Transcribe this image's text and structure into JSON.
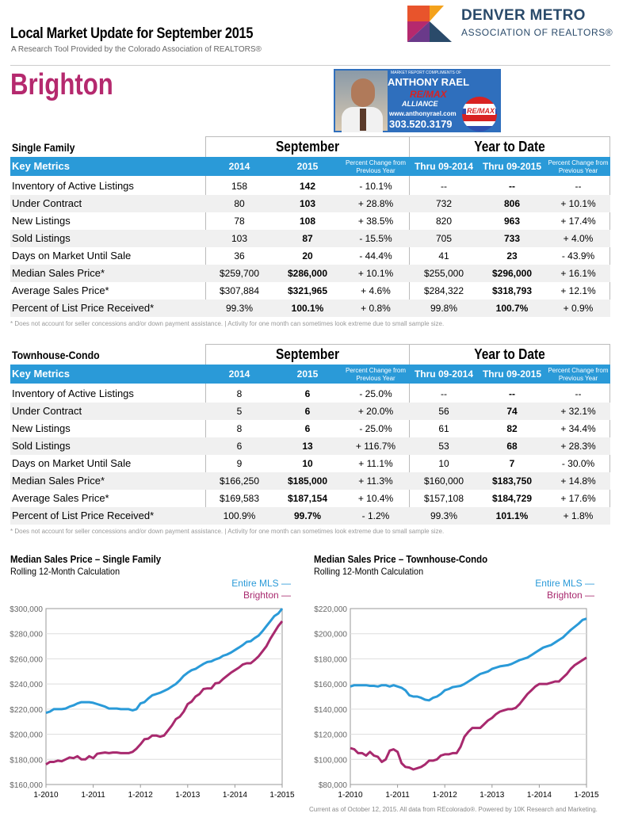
{
  "header": {
    "title": "Local Market Update for September 2015",
    "subtitle": "A Research Tool Provided by the Colorado Association of REALTORS®",
    "city": "Brighton",
    "logo_line1": "DENVER METRO",
    "logo_line2": "ASSOCIATION OF REALTORS®"
  },
  "ad": {
    "top": "MARKET REPORT COMPLIMENTS OF",
    "name": "ANTHONY RAEL",
    "brand": "RE/MAX",
    "brand2": "ALLIANCE",
    "website": "www.anthonyrael.com",
    "phone": "303.520.3179",
    "balloon": "RE/MAX"
  },
  "columns": {
    "key_metrics": "Key Metrics",
    "y2014": "2014",
    "y2015": "2015",
    "pct": "Percent Change from Previous Year",
    "ytd2014": "Thru 09-2014",
    "ytd2015": "Thru 09-2015",
    "period": "September",
    "ytd": "Year to Date"
  },
  "footnote": "* Does not account for seller concessions and/or down payment assistance.  |  Activity for one month can sometimes look extreme due to small sample size.",
  "single_family": {
    "name": "Single Family",
    "rows": [
      {
        "label": "Inventory of Active Listings",
        "a": "158",
        "b": "142",
        "c": "- 10.1%",
        "d": "--",
        "e": "--",
        "f": "--"
      },
      {
        "label": "Under Contract",
        "a": "80",
        "b": "103",
        "c": "+ 28.8%",
        "d": "732",
        "e": "806",
        "f": "+ 10.1%"
      },
      {
        "label": "New Listings",
        "a": "78",
        "b": "108",
        "c": "+ 38.5%",
        "d": "820",
        "e": "963",
        "f": "+ 17.4%"
      },
      {
        "label": "Sold Listings",
        "a": "103",
        "b": "87",
        "c": "- 15.5%",
        "d": "705",
        "e": "733",
        "f": "+ 4.0%"
      },
      {
        "label": "Days on Market Until Sale",
        "a": "36",
        "b": "20",
        "c": "- 44.4%",
        "d": "41",
        "e": "23",
        "f": "- 43.9%"
      },
      {
        "label": "Median Sales Price*",
        "a": "$259,700",
        "b": "$286,000",
        "c": "+ 10.1%",
        "d": "$255,000",
        "e": "$296,000",
        "f": "+ 16.1%"
      },
      {
        "label": "Average Sales Price*",
        "a": "$307,884",
        "b": "$321,965",
        "c": "+ 4.6%",
        "d": "$284,322",
        "e": "$318,793",
        "f": "+ 12.1%"
      },
      {
        "label": "Percent of List Price Received*",
        "a": "99.3%",
        "b": "100.1%",
        "c": "+ 0.8%",
        "d": "99.8%",
        "e": "100.7%",
        "f": "+ 0.9%"
      }
    ]
  },
  "townhouse": {
    "name": "Townhouse-Condo",
    "rows": [
      {
        "label": "Inventory of Active Listings",
        "a": "8",
        "b": "6",
        "c": "- 25.0%",
        "d": "--",
        "e": "--",
        "f": "--"
      },
      {
        "label": "Under Contract",
        "a": "5",
        "b": "6",
        "c": "+ 20.0%",
        "d": "56",
        "e": "74",
        "f": "+ 32.1%"
      },
      {
        "label": "New Listings",
        "a": "8",
        "b": "6",
        "c": "- 25.0%",
        "d": "61",
        "e": "82",
        "f": "+ 34.4%"
      },
      {
        "label": "Sold Listings",
        "a": "6",
        "b": "13",
        "c": "+ 116.7%",
        "d": "53",
        "e": "68",
        "f": "+ 28.3%"
      },
      {
        "label": "Days on Market Until Sale",
        "a": "9",
        "b": "10",
        "c": "+ 11.1%",
        "d": "10",
        "e": "7",
        "f": "- 30.0%"
      },
      {
        "label": "Median Sales Price*",
        "a": "$166,250",
        "b": "$185,000",
        "c": "+ 11.3%",
        "d": "$160,000",
        "e": "$183,750",
        "f": "+ 14.8%"
      },
      {
        "label": "Average Sales Price*",
        "a": "$169,583",
        "b": "$187,154",
        "c": "+ 10.4%",
        "d": "$157,108",
        "e": "$184,729",
        "f": "+ 17.6%"
      },
      {
        "label": "Percent of List Price Received*",
        "a": "100.9%",
        "b": "99.7%",
        "c": "- 1.2%",
        "d": "99.3%",
        "e": "101.1%",
        "f": "+ 1.8%"
      }
    ]
  },
  "charts": {
    "left_title": "Median Sales Price – Single Family",
    "left_sub": "Rolling 12-Month Calculation",
    "right_title": "Median Sales Price – Townhouse-Condo",
    "right_sub": "Rolling 12-Month Calculation",
    "legend_mls": "Entire MLS  —",
    "legend_city": "Brighton  —"
  },
  "chart_data": [
    {
      "type": "line",
      "title": "Median Sales Price – Single Family",
      "subtitle": "Rolling 12-Month Calculation",
      "x_ticks": [
        "1-2010",
        "1-2011",
        "1-2012",
        "1-2013",
        "1-2014",
        "1-2015"
      ],
      "y_ticks": [
        "$160,000",
        "$180,000",
        "$200,000",
        "$220,000",
        "$240,000",
        "$260,000",
        "$280,000",
        "$300,000"
      ],
      "ylim": [
        160000,
        300000
      ],
      "colors": {
        "Entire MLS": "#2a9ad8",
        "Brighton": "#a8296e"
      },
      "series": [
        {
          "name": "Entire MLS",
          "values": [
            217000,
            218000,
            220000,
            220000,
            220000,
            220500,
            222000,
            223000,
            224500,
            225500,
            225500,
            225500,
            225000,
            224000,
            223000,
            222000,
            220500,
            220500,
            220500,
            220000,
            220000,
            220000,
            219000,
            220000,
            224500,
            225500,
            228500,
            231000,
            232000,
            233000,
            234500,
            236000,
            238000,
            240000,
            243000,
            246500,
            249000,
            251000,
            252000,
            254000,
            256000,
            257500,
            258000,
            259500,
            260500,
            262500,
            263500,
            265000,
            267000,
            269000,
            271000,
            273500,
            274000,
            276500,
            278500,
            282000,
            286000,
            290000,
            294000,
            296000,
            300000
          ]
        },
        {
          "name": "Brighton",
          "values": [
            176000,
            178000,
            178000,
            179000,
            178500,
            180000,
            181500,
            181000,
            182500,
            180000,
            180000,
            182500,
            181000,
            184500,
            185000,
            185500,
            185000,
            185500,
            185500,
            185000,
            185000,
            185000,
            186000,
            188500,
            192000,
            196000,
            196500,
            199000,
            199000,
            198000,
            199000,
            203000,
            207000,
            212000,
            214000,
            218000,
            224000,
            226000,
            230000,
            232000,
            236000,
            236500,
            236500,
            240500,
            241000,
            244000,
            246500,
            249000,
            251000,
            253000,
            255500,
            256500,
            256500,
            259000,
            262000,
            266000,
            270000,
            276000,
            281000,
            286000,
            290000
          ]
        }
      ]
    },
    {
      "type": "line",
      "title": "Median Sales Price – Townhouse-Condo",
      "subtitle": "Rolling 12-Month Calculation",
      "x_ticks": [
        "1-2010",
        "1-2011",
        "1-2012",
        "1-2013",
        "1-2014",
        "1-2015"
      ],
      "y_ticks": [
        "$80,000",
        "$100,000",
        "$120,000",
        "$140,000",
        "$160,000",
        "$180,000",
        "$200,000",
        "$220,000"
      ],
      "ylim": [
        80000,
        220000
      ],
      "colors": {
        "Entire MLS": "#2a9ad8",
        "Brighton": "#a8296e"
      },
      "series": [
        {
          "name": "Entire MLS",
          "values": [
            158000,
            159000,
            159000,
            159000,
            159000,
            158500,
            158500,
            158000,
            159000,
            159000,
            158000,
            159000,
            158000,
            157000,
            155000,
            151000,
            150000,
            150000,
            149000,
            147500,
            147000,
            149000,
            150000,
            152000,
            155000,
            156000,
            157500,
            158000,
            158500,
            160000,
            162000,
            164000,
            166000,
            168000,
            169000,
            170000,
            172000,
            173000,
            174000,
            174500,
            175000,
            176000,
            177500,
            179000,
            180000,
            181000,
            183000,
            185000,
            187000,
            189000,
            190000,
            191000,
            193000,
            195000,
            197000,
            200000,
            203000,
            205500,
            208000,
            211000,
            212000
          ]
        },
        {
          "name": "Brighton",
          "values": [
            109000,
            108000,
            105000,
            105000,
            103000,
            106000,
            103000,
            102000,
            98000,
            100000,
            107000,
            108000,
            106000,
            97000,
            94000,
            93500,
            92000,
            93000,
            94000,
            96000,
            99000,
            99000,
            100000,
            103000,
            104000,
            104000,
            105000,
            105000,
            110000,
            118000,
            122000,
            125000,
            125000,
            125000,
            128000,
            131000,
            133000,
            136000,
            138000,
            139000,
            140000,
            140000,
            141000,
            144000,
            148000,
            152000,
            155000,
            158000,
            160000,
            160000,
            160000,
            161000,
            162000,
            162000,
            165000,
            168000,
            172000,
            175000,
            177000,
            179000,
            181000
          ]
        }
      ]
    }
  ],
  "footer": "Current as of October 12, 2015. All data from REcolorado®. Powered by 10K Research and Marketing."
}
